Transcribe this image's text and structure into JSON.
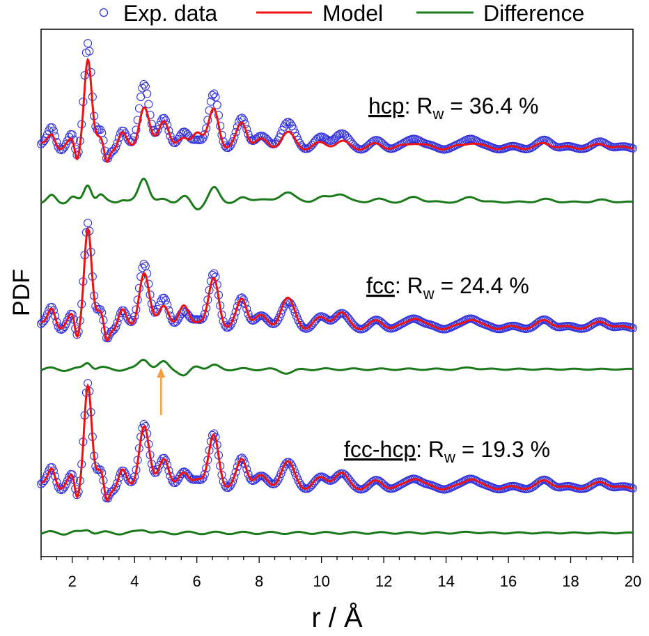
{
  "chart_data": {
    "type": "line",
    "xlabel": "r / Å",
    "ylabel": "PDF",
    "xlim": [
      1,
      20
    ],
    "xticks": [
      "2",
      "4",
      "6",
      "8",
      "10",
      "12",
      "14",
      "16",
      "18",
      "20"
    ],
    "grid": false,
    "legend_position": "top",
    "legend": [
      {
        "name": "Exp. data",
        "marker": "open-circle",
        "color": "#3333dd"
      },
      {
        "name": "Model",
        "marker": "line",
        "color": "#ee1111"
      },
      {
        "name": "Difference",
        "marker": "line",
        "color": "#1a7a1a"
      }
    ],
    "panels": [
      {
        "label": "hcp",
        "rw_text": ": R",
        "rw_sub": "w",
        "rw_value": " = 36.4 %",
        "rw": 36.4,
        "annotation_arrow_x": null
      },
      {
        "label": "fcc",
        "rw_text": ": R",
        "rw_sub": "w",
        "rw_value": " = 24.4 %",
        "rw": 24.4,
        "annotation_arrow_x": 4.85
      },
      {
        "label": "fcc-hcp",
        "rw_text": ": R",
        "rw_sub": "w",
        "rw_value": " = 19.3 %",
        "rw": 19.3,
        "annotation_arrow_x": null
      }
    ],
    "peaks": [
      {
        "r": 1.35,
        "exp": 0.3,
        "hcp": 0.22,
        "fcc": 0.3,
        "fcchcp": 0.3
      },
      {
        "r": 2.0,
        "exp": 0.15,
        "hcp": 0.08,
        "fcc": 0.15,
        "fcchcp": 0.14
      },
      {
        "r": 2.5,
        "exp": 1.55,
        "hcp": 1.3,
        "fcc": 1.45,
        "fcchcp": 1.5
      },
      {
        "r": 2.9,
        "exp": 0.2,
        "hcp": 0.1,
        "fcc": 0.18,
        "fcchcp": 0.2
      },
      {
        "r": 3.6,
        "exp": 0.22,
        "hcp": 0.18,
        "fcc": 0.22,
        "fcchcp": 0.22
      },
      {
        "r": 4.3,
        "exp": 0.95,
        "hcp": 0.6,
        "fcc": 0.8,
        "fcchcp": 0.9
      },
      {
        "r": 4.95,
        "exp": 0.45,
        "hcp": 0.42,
        "fcc": 0.35,
        "fcchcp": 0.45
      },
      {
        "r": 5.6,
        "exp": 0.18,
        "hcp": 0.1,
        "fcc": 0.28,
        "fcchcp": 0.18
      },
      {
        "r": 6.0,
        "exp": 0.15,
        "hcp": 0.25,
        "fcc": 0.1,
        "fcchcp": 0.15
      },
      {
        "r": 6.55,
        "exp": 0.75,
        "hcp": 0.55,
        "fcc": 0.7,
        "fcchcp": 0.75
      },
      {
        "r": 7.45,
        "exp": 0.4,
        "hcp": 0.35,
        "fcc": 0.4,
        "fcchcp": 0.4
      },
      {
        "r": 8.0,
        "exp": 0.15,
        "hcp": 0.1,
        "fcc": 0.15,
        "fcchcp": 0.15
      },
      {
        "r": 8.9,
        "exp": 0.35,
        "hcp": 0.2,
        "fcc": 0.4,
        "fcchcp": 0.35
      },
      {
        "r": 10.0,
        "exp": 0.12,
        "hcp": 0.05,
        "fcc": 0.12,
        "fcchcp": 0.12
      },
      {
        "r": 10.6,
        "exp": 0.2,
        "hcp": 0.08,
        "fcc": 0.2,
        "fcchcp": 0.2
      },
      {
        "r": 11.8,
        "exp": 0.08,
        "hcp": 0.04,
        "fcc": 0.08,
        "fcchcp": 0.08
      },
      {
        "r": 13.0,
        "exp": 0.15,
        "hcp": 0.08,
        "fcc": 0.15,
        "fcchcp": 0.15
      },
      {
        "r": 14.8,
        "exp": 0.15,
        "hcp": 0.08,
        "fcc": 0.13,
        "fcchcp": 0.14
      },
      {
        "r": 17.2,
        "exp": 0.1,
        "hcp": 0.06,
        "fcc": 0.1,
        "fcchcp": 0.1
      },
      {
        "r": 19.0,
        "exp": 0.08,
        "hcp": 0.05,
        "fcc": 0.08,
        "fcchcp": 0.08
      }
    ],
    "colors": {
      "exp": "#3333dd",
      "model": "#ee1111",
      "difference": "#1a7a1a",
      "arrow": "#f5a040"
    }
  }
}
